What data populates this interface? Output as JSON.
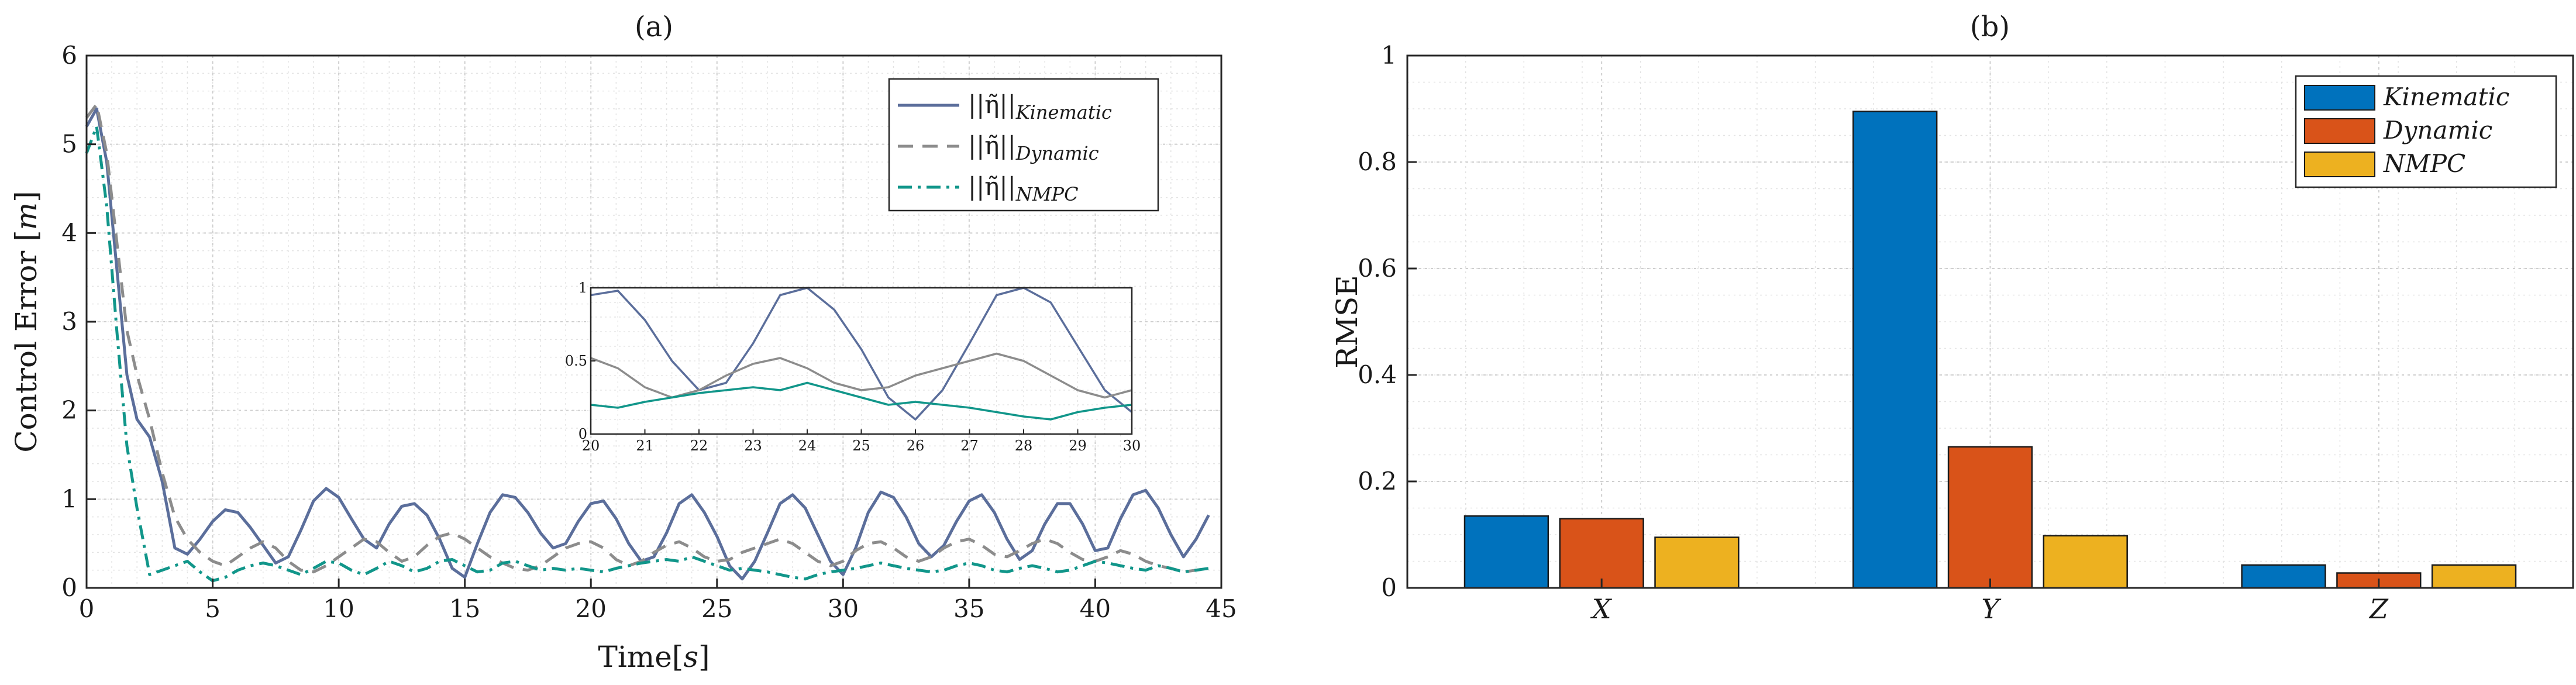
{
  "chart_data": [
    {
      "panel": "(a)",
      "type": "line",
      "title": "(a)",
      "xlabel": "Time[s]",
      "ylabel": "Control Error [m]",
      "xlim": [
        0,
        45
      ],
      "ylim": [
        0,
        6
      ],
      "xticks": [
        "0",
        "5",
        "10",
        "15",
        "20",
        "25",
        "30",
        "35",
        "40",
        "45"
      ],
      "yticks": [
        "0",
        "1",
        "2",
        "3",
        "4",
        "5",
        "6"
      ],
      "grid": true,
      "legend_position": "top-right",
      "series": [
        {
          "name": "||η̃||Kinematic",
          "legend_main": "||η̃||",
          "legend_sub": "Kinematic",
          "color": "#5b6e9b",
          "style": "solid",
          "x": [
            0,
            0.4,
            0.8,
            1.2,
            1.6,
            2.0,
            2.5,
            3.0,
            3.5,
            4.0,
            4.5,
            5.0,
            5.5,
            6.0,
            6.5,
            7.0,
            7.5,
            8.0,
            8.5,
            9.0,
            9.5,
            10.0,
            10.5,
            11.0,
            11.5,
            12.0,
            12.5,
            13.0,
            13.5,
            14.0,
            14.5,
            15.0,
            15.5,
            16.0,
            16.5,
            17.0,
            17.5,
            18.0,
            18.5,
            19.0,
            19.5,
            20.0,
            20.5,
            21.0,
            21.5,
            22.0,
            22.5,
            23.0,
            23.5,
            24.0,
            24.5,
            25.0,
            25.5,
            26.0,
            26.5,
            27.0,
            27.5,
            28.0,
            28.5,
            29.0,
            29.5,
            30.0,
            30.5,
            31.0,
            31.5,
            32.0,
            32.5,
            33.0,
            33.5,
            34.0,
            34.5,
            35.0,
            35.5,
            36.0,
            36.5,
            37.0,
            37.5,
            38.0,
            38.5,
            39.0,
            39.5,
            40.0,
            40.5,
            41.0,
            41.5,
            42.0,
            42.5,
            43.0,
            43.5,
            44.0,
            44.5
          ],
          "y": [
            5.2,
            5.4,
            4.8,
            3.6,
            2.4,
            1.9,
            1.7,
            1.2,
            0.45,
            0.38,
            0.55,
            0.75,
            0.88,
            0.85,
            0.68,
            0.48,
            0.28,
            0.35,
            0.65,
            0.98,
            1.12,
            1.02,
            0.78,
            0.55,
            0.45,
            0.72,
            0.92,
            0.95,
            0.82,
            0.55,
            0.22,
            0.12,
            0.5,
            0.85,
            1.05,
            1.02,
            0.85,
            0.62,
            0.45,
            0.5,
            0.75,
            0.95,
            0.98,
            0.78,
            0.5,
            0.3,
            0.35,
            0.62,
            0.95,
            1.05,
            0.85,
            0.58,
            0.25,
            0.1,
            0.3,
            0.62,
            0.95,
            1.05,
            0.9,
            0.6,
            0.3,
            0.15,
            0.45,
            0.85,
            1.08,
            1.02,
            0.8,
            0.5,
            0.35,
            0.48,
            0.75,
            0.98,
            1.05,
            0.85,
            0.55,
            0.32,
            0.42,
            0.72,
            0.95,
            0.95,
            0.72,
            0.42,
            0.45,
            0.78,
            1.05,
            1.1,
            0.9,
            0.6,
            0.35,
            0.55,
            0.82
          ]
        },
        {
          "name": "||η̃||Dynamic",
          "legend_main": "||η̃||",
          "legend_sub": "Dynamic",
          "color": "#8c8c8c",
          "style": "dashed",
          "x": [
            0,
            0.4,
            0.8,
            1.2,
            1.6,
            2.0,
            2.5,
            3.0,
            3.5,
            4.0,
            4.5,
            5.0,
            5.5,
            6.0,
            6.5,
            7.0,
            7.5,
            8.0,
            8.5,
            9.0,
            9.5,
            10.0,
            10.5,
            11.0,
            11.5,
            12.0,
            12.5,
            13.0,
            13.5,
            14.0,
            14.5,
            15.0,
            15.5,
            16.0,
            16.5,
            17.0,
            17.5,
            18.0,
            18.5,
            19.0,
            19.5,
            20.0,
            20.5,
            21.0,
            21.5,
            22.0,
            22.5,
            23.0,
            23.5,
            24.0,
            24.5,
            25.0,
            25.5,
            26.0,
            26.5,
            27.0,
            27.5,
            28.0,
            28.5,
            29.0,
            29.5,
            30.0,
            30.5,
            31.0,
            31.5,
            32.0,
            32.5,
            33.0,
            33.5,
            34.0,
            34.5,
            35.0,
            35.5,
            36.0,
            36.5,
            37.0,
            37.5,
            38.0,
            38.5,
            39.0,
            39.5,
            40.0,
            40.5,
            41.0,
            41.5,
            42.0,
            42.5,
            43.0,
            43.5,
            44.0,
            44.5
          ],
          "y": [
            5.3,
            5.45,
            4.9,
            3.9,
            2.9,
            2.4,
            1.9,
            1.3,
            0.8,
            0.55,
            0.4,
            0.3,
            0.25,
            0.35,
            0.45,
            0.52,
            0.45,
            0.3,
            0.2,
            0.18,
            0.25,
            0.35,
            0.45,
            0.55,
            0.52,
            0.4,
            0.3,
            0.35,
            0.48,
            0.58,
            0.62,
            0.55,
            0.45,
            0.35,
            0.28,
            0.22,
            0.2,
            0.25,
            0.35,
            0.45,
            0.5,
            0.52,
            0.45,
            0.32,
            0.25,
            0.3,
            0.4,
            0.48,
            0.52,
            0.45,
            0.35,
            0.3,
            0.32,
            0.4,
            0.45,
            0.5,
            0.55,
            0.5,
            0.4,
            0.3,
            0.25,
            0.3,
            0.42,
            0.5,
            0.52,
            0.45,
            0.35,
            0.3,
            0.35,
            0.45,
            0.52,
            0.55,
            0.48,
            0.38,
            0.35,
            0.42,
            0.5,
            0.55,
            0.5,
            0.4,
            0.32,
            0.3,
            0.35,
            0.42,
            0.38,
            0.3,
            0.25,
            0.22,
            0.18,
            0.2,
            0.22
          ]
        },
        {
          "name": "||η̃||NMPC",
          "legend_main": "||η̃||",
          "legend_sub": "NMPC",
          "color": "#11968a",
          "style": "dashdot",
          "x": [
            0,
            0.4,
            0.8,
            1.2,
            1.6,
            2.0,
            2.5,
            3.0,
            3.5,
            4.0,
            4.5,
            5.0,
            5.5,
            6.0,
            6.5,
            7.0,
            7.5,
            8.0,
            8.5,
            9.0,
            9.5,
            10.0,
            10.5,
            11.0,
            11.5,
            12.0,
            12.5,
            13.0,
            13.5,
            14.0,
            14.5,
            15.0,
            15.5,
            16.0,
            16.5,
            17.0,
            17.5,
            18.0,
            18.5,
            19.0,
            19.5,
            20.0,
            20.5,
            21.0,
            21.5,
            22.0,
            22.5,
            23.0,
            23.5,
            24.0,
            24.5,
            25.0,
            25.5,
            26.0,
            26.5,
            27.0,
            27.5,
            28.0,
            28.5,
            29.0,
            29.5,
            30.0,
            30.5,
            31.0,
            31.5,
            32.0,
            32.5,
            33.0,
            33.5,
            34.0,
            34.5,
            35.0,
            35.5,
            36.0,
            36.5,
            37.0,
            37.5,
            38.0,
            38.5,
            39.0,
            39.5,
            40.0,
            40.5,
            41.0,
            41.5,
            42.0,
            42.5,
            43.0,
            43.5,
            44.0,
            44.5
          ],
          "y": [
            4.9,
            5.2,
            4.3,
            2.9,
            1.6,
            0.9,
            0.15,
            0.2,
            0.25,
            0.3,
            0.18,
            0.08,
            0.12,
            0.2,
            0.25,
            0.28,
            0.25,
            0.2,
            0.15,
            0.22,
            0.3,
            0.28,
            0.2,
            0.15,
            0.22,
            0.3,
            0.25,
            0.18,
            0.22,
            0.3,
            0.32,
            0.25,
            0.18,
            0.2,
            0.28,
            0.3,
            0.25,
            0.2,
            0.22,
            0.2,
            0.22,
            0.2,
            0.18,
            0.22,
            0.25,
            0.28,
            0.3,
            0.32,
            0.3,
            0.35,
            0.3,
            0.25,
            0.2,
            0.22,
            0.2,
            0.18,
            0.15,
            0.12,
            0.1,
            0.15,
            0.18,
            0.2,
            0.22,
            0.25,
            0.28,
            0.25,
            0.22,
            0.2,
            0.18,
            0.2,
            0.25,
            0.28,
            0.25,
            0.2,
            0.18,
            0.22,
            0.25,
            0.22,
            0.18,
            0.2,
            0.25,
            0.3,
            0.28,
            0.25,
            0.22,
            0.2,
            0.25,
            0.22,
            0.18,
            0.2,
            0.22
          ]
        }
      ],
      "inset": {
        "xlim": [
          20,
          30
        ],
        "ylim": [
          0,
          1
        ],
        "xticks": [
          "20",
          "21",
          "22",
          "23",
          "24",
          "25",
          "26",
          "27",
          "28",
          "29",
          "30"
        ],
        "yticks": [
          "0",
          "0.5",
          "1"
        ]
      }
    },
    {
      "panel": "(b)",
      "type": "bar",
      "title": "(b)",
      "xlabel": "",
      "ylabel": "RMSE",
      "ylim": [
        0,
        1
      ],
      "yticks": [
        "0",
        "0.2",
        "0.4",
        "0.6",
        "0.8",
        "1"
      ],
      "categories": [
        "X",
        "Y",
        "Z"
      ],
      "grid": true,
      "legend_position": "top-right",
      "series": [
        {
          "name": "Kinematic",
          "color": "#0072bd",
          "values": [
            0.135,
            0.895,
            0.043
          ]
        },
        {
          "name": "Dynamic",
          "color": "#d95319",
          "values": [
            0.13,
            0.265,
            0.028
          ]
        },
        {
          "name": "NMPC",
          "color": "#edb120",
          "values": [
            0.095,
            0.098,
            0.043
          ]
        }
      ]
    }
  ]
}
